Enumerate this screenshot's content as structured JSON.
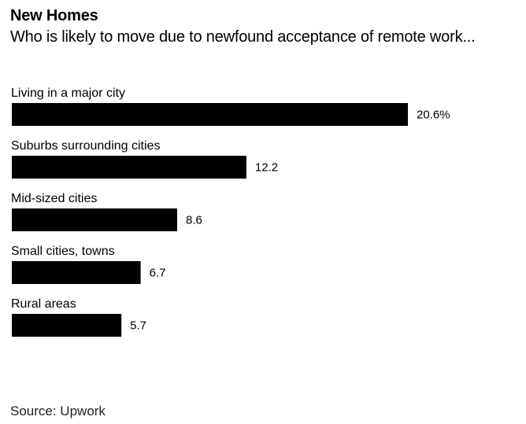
{
  "chart_data": {
    "type": "bar",
    "orientation": "horizontal",
    "title": "New Homes",
    "subtitle": "Who is likely to move due to newfound acceptance of remote work...",
    "categories": [
      "Living in a major city",
      "Suburbs surrounding cities",
      "Mid-sized cities",
      "Small cities, towns",
      "Rural areas"
    ],
    "values": [
      20.6,
      12.2,
      8.6,
      6.7,
      5.7
    ],
    "value_labels": [
      "20.6%",
      "12.2",
      "8.6",
      "6.7",
      "5.7"
    ],
    "unit": "%",
    "xlim": [
      0,
      20.6
    ],
    "bar_color": "#000000",
    "grid": false,
    "legend": "none"
  },
  "source": "Source: Upwork"
}
